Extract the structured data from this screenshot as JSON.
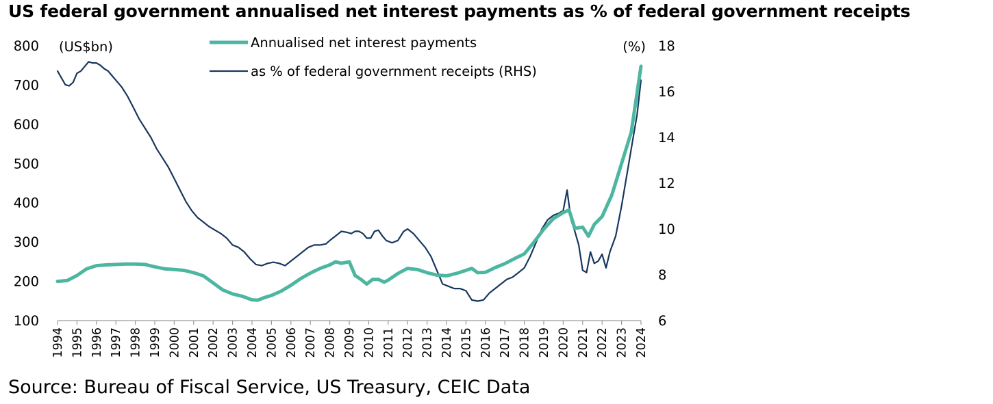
{
  "chart_data": {
    "type": "line",
    "title": "US federal government annualised net interest payments as % of federal government receipts",
    "source": "Source: Bureau of Fiscal Service, US Treasury, CEIC Data",
    "left_axis": {
      "unit_label": "(US$bn)",
      "ylim": [
        100,
        800
      ],
      "ticks": [
        "100",
        "200",
        "300",
        "400",
        "500",
        "600",
        "700",
        "800"
      ]
    },
    "right_axis": {
      "unit_label": "(%)",
      "ylim": [
        6,
        18
      ],
      "ticks": [
        "6",
        "8",
        "10",
        "12",
        "14",
        "16",
        "18"
      ]
    },
    "x_axis": {
      "xlim": [
        1994,
        2024
      ],
      "ticks": [
        "1994",
        "1995",
        "1996",
        "1997",
        "1998",
        "1999",
        "2000",
        "2001",
        "2002",
        "2003",
        "2004",
        "2005",
        "2006",
        "2007",
        "2008",
        "2009",
        "2010",
        "2011",
        "2012",
        "2013",
        "2014",
        "2015",
        "2016",
        "2017",
        "2018",
        "2019",
        "2020",
        "2021",
        "2022",
        "2023",
        "2024"
      ]
    },
    "grid": false,
    "legend_position": "top-center",
    "series": [
      {
        "name": "Annualised net interest payments",
        "axis": "left",
        "color": "#4db6a0",
        "points": [
          [
            1994.0,
            200
          ],
          [
            1994.5,
            202
          ],
          [
            1995.0,
            215
          ],
          [
            1995.5,
            232
          ],
          [
            1996.0,
            240
          ],
          [
            1996.5,
            242
          ],
          [
            1997.0,
            243
          ],
          [
            1997.5,
            244
          ],
          [
            1998.0,
            244
          ],
          [
            1998.5,
            243
          ],
          [
            1999.0,
            237
          ],
          [
            1999.5,
            232
          ],
          [
            2000.0,
            230
          ],
          [
            2000.5,
            228
          ],
          [
            2001.0,
            222
          ],
          [
            2001.5,
            214
          ],
          [
            2002.0,
            196
          ],
          [
            2002.5,
            178
          ],
          [
            2003.0,
            168
          ],
          [
            2003.5,
            162
          ],
          [
            2004.0,
            153
          ],
          [
            2004.3,
            152
          ],
          [
            2004.6,
            158
          ],
          [
            2005.0,
            164
          ],
          [
            2005.5,
            175
          ],
          [
            2006.0,
            190
          ],
          [
            2006.5,
            207
          ],
          [
            2007.0,
            221
          ],
          [
            2007.5,
            233
          ],
          [
            2008.0,
            242
          ],
          [
            2008.3,
            250
          ],
          [
            2008.6,
            246
          ],
          [
            2009.0,
            250
          ],
          [
            2009.3,
            215
          ],
          [
            2009.6,
            205
          ],
          [
            2009.9,
            193
          ],
          [
            2010.2,
            205
          ],
          [
            2010.5,
            205
          ],
          [
            2010.8,
            198
          ],
          [
            2011.0,
            203
          ],
          [
            2011.5,
            220
          ],
          [
            2012.0,
            233
          ],
          [
            2012.5,
            230
          ],
          [
            2013.0,
            222
          ],
          [
            2013.5,
            216
          ],
          [
            2014.0,
            214
          ],
          [
            2014.5,
            220
          ],
          [
            2015.0,
            228
          ],
          [
            2015.3,
            233
          ],
          [
            2015.6,
            222
          ],
          [
            2016.0,
            223
          ],
          [
            2016.5,
            235
          ],
          [
            2017.0,
            245
          ],
          [
            2017.5,
            258
          ],
          [
            2018.0,
            270
          ],
          [
            2018.5,
            300
          ],
          [
            2019.0,
            333
          ],
          [
            2019.5,
            360
          ],
          [
            2020.0,
            375
          ],
          [
            2020.3,
            382
          ],
          [
            2020.6,
            335
          ],
          [
            2021.0,
            338
          ],
          [
            2021.3,
            315
          ],
          [
            2021.6,
            345
          ],
          [
            2022.0,
            365
          ],
          [
            2022.5,
            420
          ],
          [
            2023.0,
            500
          ],
          [
            2023.5,
            580
          ],
          [
            2024.0,
            748
          ]
        ]
      },
      {
        "name": "as % of federal government receipts (RHS)",
        "axis": "right",
        "color": "#17375e",
        "points": [
          [
            1994.0,
            16.9
          ],
          [
            1994.2,
            16.6
          ],
          [
            1994.4,
            16.3
          ],
          [
            1994.6,
            16.25
          ],
          [
            1994.8,
            16.4
          ],
          [
            1995.0,
            16.8
          ],
          [
            1995.2,
            16.9
          ],
          [
            1995.4,
            17.1
          ],
          [
            1995.6,
            17.3
          ],
          [
            1995.8,
            17.25
          ],
          [
            1996.0,
            17.25
          ],
          [
            1996.2,
            17.15
          ],
          [
            1996.4,
            17.0
          ],
          [
            1996.6,
            16.9
          ],
          [
            1996.8,
            16.7
          ],
          [
            1997.0,
            16.5
          ],
          [
            1997.3,
            16.2
          ],
          [
            1997.6,
            15.8
          ],
          [
            1997.9,
            15.3
          ],
          [
            1998.2,
            14.8
          ],
          [
            1998.5,
            14.4
          ],
          [
            1998.8,
            14.0
          ],
          [
            1999.1,
            13.5
          ],
          [
            1999.4,
            13.1
          ],
          [
            1999.7,
            12.7
          ],
          [
            2000.0,
            12.2
          ],
          [
            2000.3,
            11.7
          ],
          [
            2000.6,
            11.2
          ],
          [
            2000.9,
            10.8
          ],
          [
            2001.2,
            10.5
          ],
          [
            2001.5,
            10.3
          ],
          [
            2001.8,
            10.1
          ],
          [
            2002.1,
            9.95
          ],
          [
            2002.4,
            9.8
          ],
          [
            2002.7,
            9.6
          ],
          [
            2003.0,
            9.3
          ],
          [
            2003.3,
            9.2
          ],
          [
            2003.6,
            9.0
          ],
          [
            2003.9,
            8.7
          ],
          [
            2004.2,
            8.45
          ],
          [
            2004.5,
            8.4
          ],
          [
            2004.8,
            8.5
          ],
          [
            2005.1,
            8.55
          ],
          [
            2005.4,
            8.5
          ],
          [
            2005.7,
            8.4
          ],
          [
            2006.0,
            8.6
          ],
          [
            2006.3,
            8.8
          ],
          [
            2006.6,
            9.0
          ],
          [
            2006.9,
            9.2
          ],
          [
            2007.2,
            9.3
          ],
          [
            2007.5,
            9.3
          ],
          [
            2007.8,
            9.35
          ],
          [
            2008.0,
            9.5
          ],
          [
            2008.3,
            9.7
          ],
          [
            2008.6,
            9.9
          ],
          [
            2008.9,
            9.85
          ],
          [
            2009.1,
            9.8
          ],
          [
            2009.3,
            9.9
          ],
          [
            2009.5,
            9.9
          ],
          [
            2009.7,
            9.8
          ],
          [
            2009.9,
            9.6
          ],
          [
            2010.1,
            9.6
          ],
          [
            2010.3,
            9.9
          ],
          [
            2010.5,
            9.95
          ],
          [
            2010.7,
            9.7
          ],
          [
            2010.9,
            9.5
          ],
          [
            2011.2,
            9.4
          ],
          [
            2011.5,
            9.5
          ],
          [
            2011.8,
            9.9
          ],
          [
            2012.0,
            10.0
          ],
          [
            2012.3,
            9.8
          ],
          [
            2012.6,
            9.5
          ],
          [
            2012.9,
            9.2
          ],
          [
            2013.2,
            8.8
          ],
          [
            2013.5,
            8.2
          ],
          [
            2013.8,
            7.6
          ],
          [
            2014.1,
            7.5
          ],
          [
            2014.4,
            7.4
          ],
          [
            2014.7,
            7.4
          ],
          [
            2015.0,
            7.3
          ],
          [
            2015.3,
            6.9
          ],
          [
            2015.6,
            6.85
          ],
          [
            2015.9,
            6.9
          ],
          [
            2016.2,
            7.2
          ],
          [
            2016.5,
            7.4
          ],
          [
            2016.8,
            7.6
          ],
          [
            2017.1,
            7.8
          ],
          [
            2017.4,
            7.9
          ],
          [
            2017.7,
            8.1
          ],
          [
            2018.0,
            8.3
          ],
          [
            2018.3,
            8.8
          ],
          [
            2018.6,
            9.4
          ],
          [
            2018.9,
            10.0
          ],
          [
            2019.2,
            10.4
          ],
          [
            2019.5,
            10.6
          ],
          [
            2019.8,
            10.7
          ],
          [
            2020.0,
            10.8
          ],
          [
            2020.2,
            11.7
          ],
          [
            2020.4,
            10.4
          ],
          [
            2020.6,
            9.9
          ],
          [
            2020.8,
            9.3
          ],
          [
            2021.0,
            8.2
          ],
          [
            2021.2,
            8.1
          ],
          [
            2021.4,
            9.0
          ],
          [
            2021.6,
            8.5
          ],
          [
            2021.8,
            8.6
          ],
          [
            2022.0,
            8.9
          ],
          [
            2022.2,
            8.3
          ],
          [
            2022.4,
            9.0
          ],
          [
            2022.7,
            9.7
          ],
          [
            2023.0,
            11.0
          ],
          [
            2023.3,
            12.5
          ],
          [
            2023.6,
            14.0
          ],
          [
            2023.8,
            15.0
          ],
          [
            2024.0,
            16.5
          ]
        ]
      }
    ]
  }
}
